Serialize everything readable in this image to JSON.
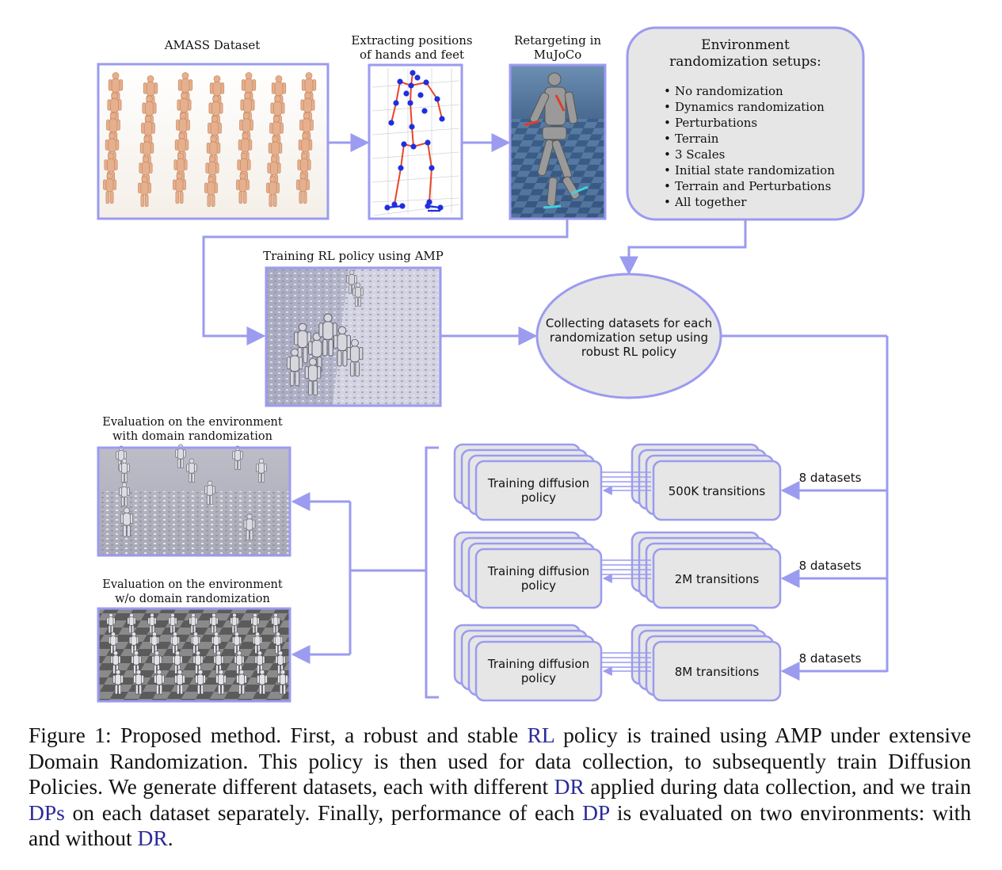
{
  "labels": {
    "amass": "AMASS Dataset",
    "extract": [
      "Extracting positions",
      "of hands and feet"
    ],
    "retarget": [
      "Retargeting in",
      "MuJoCo"
    ],
    "training_rl": "Training RL policy using AMP",
    "collect": [
      "Collecting datasets for each",
      "randomization setup using",
      "robust RL policy"
    ],
    "eval_dr": [
      "Evaluation on the environment",
      "with domain randomization"
    ],
    "eval_nodr": [
      "Evaluation on the environment",
      "w/o domain randomization"
    ]
  },
  "env_box": {
    "title": [
      "Environment",
      "randomization setups:"
    ],
    "items": [
      "No randomization",
      "Dynamics randomization",
      "Perturbations",
      "Terrain",
      "3 Scales",
      "Initial state randomization",
      "Terrain and Perturbations",
      "All together"
    ],
    "bullet": "•"
  },
  "rows": [
    {
      "policy": [
        "Training diffusion",
        "policy"
      ],
      "transitions": "500K transitions",
      "datasets": "8 datasets"
    },
    {
      "policy": [
        "Training diffusion",
        "policy"
      ],
      "transitions": "2M transitions",
      "datasets": "8 datasets"
    },
    {
      "policy": [
        "Training diffusion",
        "policy"
      ],
      "transitions": "8M transitions",
      "datasets": "8 datasets"
    }
  ],
  "caption": {
    "part1": "Figure 1: Proposed method. First, a robust and stable ",
    "rl": "RL",
    "part2": " policy is trained using AMP under extensive Domain Randomization. This policy is then used for data collection, to subsequently train Diffusion Policies. We generate different datasets, each with different ",
    "dr1": "DR",
    "part3": " applied during data collection, and we train ",
    "dps": "DPs",
    "part4": " on each dataset separately. Finally, performance of each ",
    "dp": "DP",
    "part5": " is evaluated on two environments: with and without ",
    "dr2": "DR",
    "part6": "."
  },
  "colors": {
    "frame": "#9b9bf0",
    "box_fill": "#e6e6e6",
    "box_stroke": "#9b9bf0",
    "link_text": "#2a2a9a",
    "skeleton_red": "#e8452a",
    "skeleton_blue": "#1f2fe0"
  }
}
